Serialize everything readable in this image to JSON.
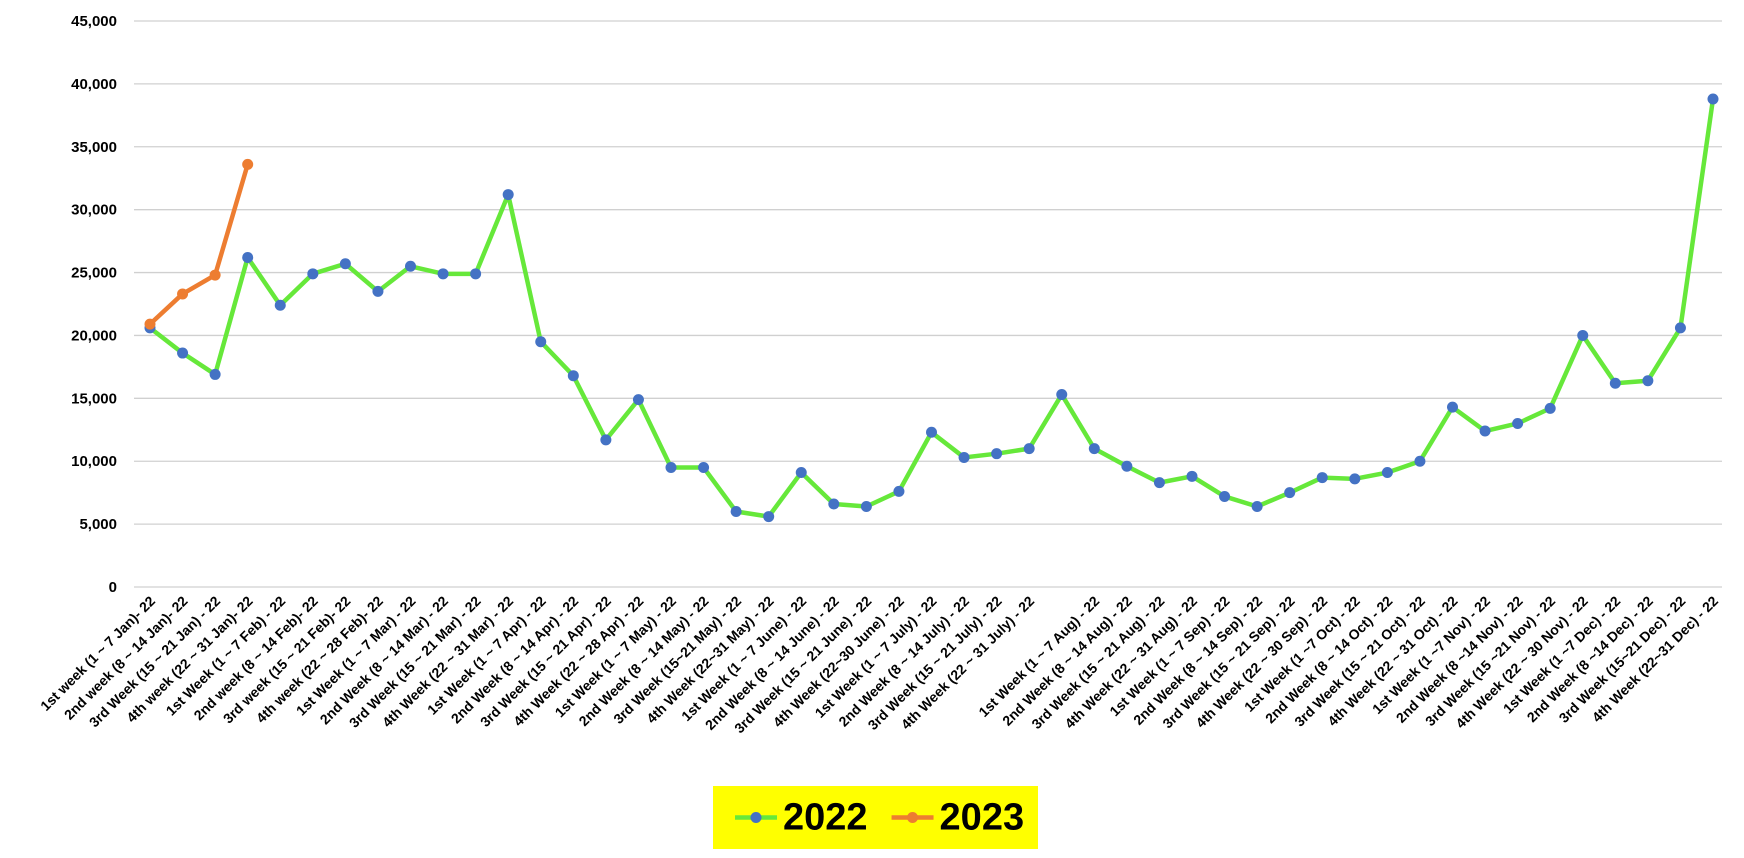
{
  "chart_data": {
    "type": "line",
    "categories": [
      "1st week (1 ~ 7 Jan)- 22",
      "2nd week (8 ~ 14 Jan)- 22",
      "3rd Week (15 ~ 21 Jan) - 22",
      "4th week (22 ~ 31 Jan)- 22",
      "1st Week (1 ~ 7 Feb) - 22",
      "2nd week (8 ~ 14 Feb)- 22",
      "3rd week (15 ~ 21 Feb)- 22",
      "4th week (22 ~ 28 Feb)- 22",
      "1st Week (1 ~ 7 Mar) - 22",
      "2nd Week (8 ~ 14 Mar) - 22",
      "3rd Week (15 ~ 21 Mar) - 22",
      "4th Week (22 ~ 31 Mar) - 22",
      "1st Week (1 ~ 7 Apr) - 22",
      "2nd Week (8 ~ 14 Apr) - 22",
      "3rd Week (15 ~ 21 Apr) - 22",
      "4th Week (22 ~ 28 Apr) - 22",
      "1st Week (1 ~ 7 May) - 22",
      "2nd Week (8 ~ 14 May) - 22",
      "3rd Week (15~21 May) - 22",
      "4th Week (22~31 May) - 22",
      "1st Week (1 ~ 7 June) - 22",
      "2nd Week (8 ~ 14 June) - 22",
      "3rd Week (15 ~ 21 June) - 22",
      "4th Week (22~30 June) - 22",
      "1st Week (1 ~ 7 July) - 22",
      "2nd Week (8 ~ 14 July) - 22",
      "3rd Week (15 ~ 21 July) - 22",
      "4th Week (22 ~ 31 July) - 22",
      null,
      "1st Week (1 ~ 7 Aug) - 22",
      "2nd Week (8 ~ 14 Aug) - 22",
      "3rd Week (15 ~ 21 Aug) - 22",
      "4th Week (22 ~ 31 Aug) - 22",
      "1st Week (1 ~ 7 Sep) - 22",
      "2nd Week (8 ~ 14 Sep) - 22",
      "3rd Week (15 ~ 21 Sep) - 22",
      "4th Week (22 ~ 30 Sep) - 22",
      "1st Week (1 ~7 Oct) - 22",
      "2nd Week (8 ~ 14 Oct) - 22",
      "3rd Week (15 ~ 21 Oct) - 22",
      "4th Week (22 ~ 31 Oct) - 22",
      "1st Week (1 ~7 Nov) - 22",
      "2nd Week (8 ~14 Nov) - 22",
      "3rd  Week (15 ~21 Nov) - 22",
      "4th Week (22 ~ 30 Nov) - 22",
      "1st Week (1 ~7 Dec) - 22",
      "2nd Week (8 ~14 Dec) - 22",
      "3rd Week (15~21 Dec) - 22",
      "4th Week (22~31 Dec) - 22"
    ],
    "series": [
      {
        "name": "2022",
        "color": "#66e83a",
        "marker_color": "#4472c4",
        "values": [
          20600,
          18600,
          16900,
          26200,
          22400,
          24900,
          25700,
          23500,
          25500,
          24900,
          24900,
          31200,
          19500,
          16800,
          11700,
          14900,
          9500,
          9500,
          6000,
          5600,
          9100,
          6600,
          6400,
          7600,
          12300,
          10300,
          10600,
          11000,
          15300,
          11000,
          9600,
          8300,
          8800,
          7200,
          6400,
          7500,
          8700,
          8600,
          9100,
          10000,
          14300,
          12400,
          13000,
          14200,
          20000,
          16200,
          16400,
          20600,
          38800
        ]
      },
      {
        "name": "2023",
        "color": "#ed7d31",
        "marker_color": "#ed7d31",
        "values": [
          20900,
          23300,
          24800,
          33600,
          null,
          null,
          null,
          null,
          null,
          null,
          null,
          null,
          null,
          null,
          null,
          null,
          null,
          null,
          null,
          null,
          null,
          null,
          null,
          null,
          null,
          null,
          null,
          null,
          null,
          null,
          null,
          null,
          null,
          null,
          null,
          null,
          null,
          null,
          null,
          null,
          null,
          null,
          null,
          null,
          null,
          null,
          null,
          null,
          null
        ]
      }
    ],
    "ylim": [
      0,
      45000
    ],
    "yticks": [
      {
        "value": 0,
        "label": "0"
      },
      {
        "value": 5000,
        "label": "5,000"
      },
      {
        "value": 10000,
        "label": "10,000"
      },
      {
        "value": 15000,
        "label": "15,000"
      },
      {
        "value": 20000,
        "label": "20,000"
      },
      {
        "value": 25000,
        "label": "25,000"
      },
      {
        "value": 30000,
        "label": "30,000"
      },
      {
        "value": 35000,
        "label": "35,000"
      },
      {
        "value": 40000,
        "label": "40,000"
      },
      {
        "value": 45000,
        "label": "45,000"
      }
    ],
    "grid": true,
    "legend": "bottom",
    "legend_background": "#ffff00"
  }
}
